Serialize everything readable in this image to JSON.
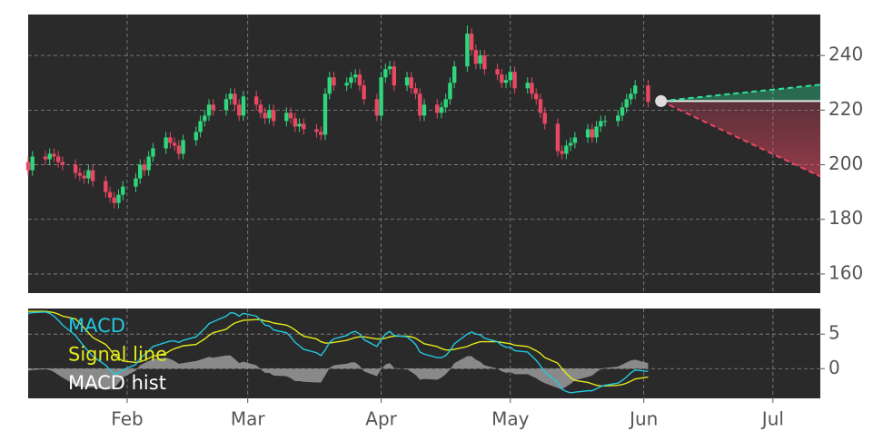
{
  "chart_data": {
    "type": "candlestick",
    "x": [
      0,
      1,
      4,
      5,
      6,
      7,
      8,
      11,
      12,
      13,
      14,
      15,
      18,
      19,
      20,
      21,
      22,
      25,
      26,
      27,
      28,
      29,
      32,
      33,
      34,
      35,
      36,
      39,
      40,
      41,
      42,
      43,
      46,
      47,
      48,
      49,
      50,
      53,
      54,
      55,
      56,
      57,
      60,
      61,
      62,
      63,
      64,
      67,
      68,
      69,
      70,
      71,
      74,
      75,
      76,
      77,
      78,
      81,
      82,
      83,
      84,
      85,
      88,
      89,
      90,
      91,
      92,
      95,
      96,
      97,
      98,
      99,
      102,
      103,
      104,
      105,
      106,
      109,
      110,
      111,
      112,
      113,
      116,
      117,
      118,
      119,
      120,
      123,
      124,
      125,
      126,
      127,
      130,
      131,
      132,
      133,
      134,
      137,
      138,
      139,
      140,
      141,
      144
    ],
    "xlim": [
      0,
      184
    ],
    "xticks": [
      {
        "value": 23,
        "label": "Feb"
      },
      {
        "value": 51,
        "label": "Mar"
      },
      {
        "value": 82,
        "label": "Apr"
      },
      {
        "value": 112,
        "label": "May"
      },
      {
        "value": 143,
        "label": "Jun"
      },
      {
        "value": 173,
        "label": "Jul"
      }
    ],
    "ylim": [
      153,
      255
    ],
    "yticks": [
      160,
      180,
      200,
      220,
      240
    ],
    "grid": true,
    "up_color": "#2fd67d",
    "down_color": "#ea4763",
    "open": [
      201,
      198,
      203,
      202,
      204,
      203,
      201,
      200,
      197,
      196,
      195,
      198,
      194,
      190,
      188,
      186,
      189,
      192,
      195,
      200,
      198,
      203,
      206,
      210,
      208,
      207,
      204,
      209,
      212,
      216,
      218,
      222,
      220,
      224,
      226,
      222,
      218,
      225,
      222,
      219,
      217,
      220,
      216,
      219,
      217,
      214,
      215,
      213,
      212,
      211,
      226,
      232,
      229,
      230,
      232,
      233,
      229,
      224,
      218,
      232,
      235,
      236,
      229,
      232,
      228,
      226,
      218,
      222,
      219,
      221,
      224,
      230,
      236,
      248,
      242,
      237,
      240,
      235,
      233,
      230,
      231,
      234,
      228,
      230,
      226,
      224,
      219,
      215,
      205,
      204,
      207,
      208,
      210,
      213,
      210,
      214,
      216,
      216,
      218,
      221,
      224,
      226,
      229
    ],
    "high": [
      203,
      205,
      205,
      206,
      206,
      205,
      203,
      202,
      199,
      198,
      200,
      200,
      196,
      192,
      190,
      191,
      194,
      197,
      202,
      202,
      205,
      208,
      212,
      212,
      210,
      209,
      211,
      214,
      218,
      220,
      224,
      224,
      226,
      228,
      228,
      224,
      227,
      227,
      224,
      221,
      222,
      222,
      221,
      221,
      219,
      217,
      217,
      215,
      214,
      228,
      234,
      234,
      232,
      234,
      235,
      235,
      231,
      226,
      234,
      237,
      238,
      238,
      234,
      234,
      230,
      228,
      224,
      224,
      223,
      226,
      232,
      238,
      251,
      250,
      244,
      242,
      242,
      237,
      235,
      233,
      236,
      236,
      232,
      232,
      228,
      226,
      221,
      217,
      207,
      209,
      210,
      212,
      215,
      215,
      216,
      218,
      218,
      220,
      223,
      226,
      228,
      231,
      231
    ],
    "low": [
      196,
      196,
      200,
      200,
      201,
      199,
      198,
      195,
      194,
      193,
      193,
      192,
      188,
      186,
      184,
      184,
      187,
      190,
      193,
      196,
      196,
      201,
      204,
      206,
      205,
      202,
      202,
      207,
      210,
      214,
      216,
      218,
      218,
      222,
      220,
      216,
      216,
      220,
      217,
      215,
      215,
      214,
      214,
      215,
      212,
      212,
      211,
      210,
      209,
      209,
      224,
      227,
      227,
      228,
      230,
      227,
      222,
      216,
      216,
      230,
      233,
      227,
      227,
      226,
      224,
      216,
      216,
      217,
      217,
      219,
      222,
      228,
      234,
      240,
      235,
      235,
      233,
      231,
      228,
      228,
      229,
      226,
      226,
      224,
      222,
      217,
      213,
      203,
      202,
      202,
      205,
      206,
      208,
      208,
      208,
      212,
      214,
      214,
      216,
      219,
      222,
      224,
      221
    ],
    "close": [
      198,
      203,
      202,
      204,
      203,
      201,
      200,
      197,
      196,
      195,
      198,
      194,
      190,
      188,
      186,
      189,
      192,
      195,
      200,
      198,
      203,
      206,
      210,
      208,
      207,
      204,
      209,
      212,
      216,
      218,
      222,
      220,
      224,
      226,
      222,
      218,
      225,
      222,
      219,
      217,
      220,
      216,
      219,
      217,
      214,
      215,
      213,
      212,
      211,
      226,
      232,
      229,
      230,
      232,
      233,
      229,
      224,
      218,
      232,
      235,
      236,
      229,
      232,
      228,
      226,
      218,
      222,
      219,
      221,
      224,
      230,
      236,
      248,
      242,
      237,
      240,
      235,
      233,
      230,
      231,
      234,
      228,
      230,
      226,
      224,
      219,
      215,
      205,
      204,
      207,
      208,
      210,
      213,
      210,
      214,
      216,
      216,
      218,
      221,
      224,
      226,
      229,
      223
    ],
    "forecast": {
      "x": [
        147,
        184
      ],
      "last": [
        223.3,
        223.3
      ],
      "upper": [
        223.3,
        229.3
      ],
      "lower": [
        223.3,
        195.7
      ],
      "upper_color": "#2fe39a",
      "lower_color": "#ea4763"
    },
    "indicator": {
      "ylim": [
        -4.3,
        8.7
      ],
      "yticks": [
        0,
        5
      ],
      "series": [
        {
          "name": "MACD",
          "color": "#22c8df",
          "values": [
            8.0,
            8.1,
            8.2,
            8.0,
            7.6,
            7.0,
            6.3,
            4.8,
            4.0,
            3.2,
            2.5,
            1.8,
            0.5,
            -0.2,
            -0.8,
            -0.6,
            -0.2,
            0.6,
            1.5,
            2.0,
            2.6,
            3.2,
            3.8,
            4.0,
            4.0,
            3.8,
            4.1,
            4.6,
            5.2,
            5.8,
            6.5,
            6.8,
            7.6,
            8.1,
            8.0,
            7.6,
            8.0,
            7.6,
            7.0,
            6.3,
            6.2,
            5.6,
            5.2,
            4.6,
            3.8,
            3.3,
            2.8,
            2.3,
            1.9,
            2.7,
            3.8,
            4.3,
            4.8,
            5.2,
            5.4,
            5.0,
            4.2,
            3.2,
            4.2,
            5.0,
            5.4,
            4.8,
            4.6,
            4.1,
            3.5,
            2.4,
            2.1,
            1.6,
            1.6,
            1.9,
            2.6,
            3.6,
            5.0,
            5.3,
            5.0,
            4.9,
            4.4,
            3.9,
            3.4,
            3.1,
            3.1,
            2.6,
            2.4,
            1.8,
            1.2,
            0.4,
            -0.5,
            -2.0,
            -3.0,
            -3.3,
            -3.5,
            -3.4,
            -3.2,
            -3.2,
            -2.9,
            -2.6,
            -2.4,
            -2.1,
            -1.7,
            -1.2,
            -0.6,
            -0.2,
            -0.4
          ]
        },
        {
          "name": "Signal line",
          "color": "#e4ea1c",
          "values": [
            8.3,
            8.3,
            8.3,
            8.2,
            8.1,
            7.9,
            7.6,
            7.2,
            6.6,
            5.9,
            5.2,
            4.5,
            3.5,
            2.8,
            2.0,
            1.5,
            1.1,
            0.9,
            1.0,
            1.2,
            1.5,
            1.8,
            2.2,
            2.6,
            2.9,
            3.1,
            3.3,
            3.5,
            3.9,
            4.3,
            4.8,
            5.2,
            5.7,
            6.2,
            6.6,
            6.8,
            7.0,
            7.1,
            7.1,
            6.9,
            6.8,
            6.6,
            6.3,
            6.0,
            5.6,
            5.1,
            4.7,
            4.3,
            3.9,
            3.7,
            3.7,
            3.8,
            4.1,
            4.3,
            4.5,
            4.6,
            4.6,
            4.3,
            4.3,
            4.4,
            4.6,
            4.7,
            4.7,
            4.6,
            4.4,
            4.0,
            3.6,
            3.2,
            2.9,
            2.7,
            2.7,
            2.8,
            3.2,
            3.5,
            3.7,
            3.9,
            3.9,
            3.9,
            3.8,
            3.7,
            3.6,
            3.4,
            3.2,
            2.9,
            2.6,
            2.2,
            1.6,
            0.8,
            0.0,
            -0.7,
            -1.3,
            -1.7,
            -2.0,
            -2.2,
            -2.4,
            -2.5,
            -2.5,
            -2.4,
            -2.3,
            -2.1,
            -1.8,
            -1.5,
            -1.2
          ]
        },
        {
          "name": "MACD hist",
          "color": "#ffffff",
          "fill": "#9a9a9a",
          "values": [
            -0.3,
            -0.2,
            -0.1,
            -0.2,
            -0.5,
            -0.9,
            -1.3,
            -2.4,
            -2.6,
            -2.7,
            -2.7,
            -2.7,
            -3.0,
            -3.0,
            -2.8,
            -2.1,
            -1.3,
            -0.3,
            0.5,
            0.8,
            1.1,
            1.4,
            1.6,
            1.4,
            1.1,
            0.7,
            0.8,
            1.1,
            1.3,
            1.5,
            1.7,
            1.6,
            1.9,
            1.9,
            1.4,
            0.8,
            1.0,
            0.5,
            -0.1,
            -0.6,
            -0.6,
            -1.0,
            -1.1,
            -1.4,
            -1.8,
            -1.8,
            -1.9,
            -2.0,
            -2.0,
            -1.0,
            0.1,
            0.5,
            0.7,
            0.9,
            0.9,
            0.4,
            -0.4,
            -1.1,
            -0.1,
            0.6,
            0.8,
            0.1,
            -0.1,
            -0.5,
            -0.9,
            -1.6,
            -1.5,
            -1.6,
            -1.3,
            -0.8,
            -0.1,
            0.8,
            1.8,
            1.8,
            1.3,
            1.0,
            0.5,
            0.0,
            -0.4,
            -0.6,
            -0.5,
            -0.8,
            -0.8,
            -1.1,
            -1.4,
            -1.8,
            -2.1,
            -2.8,
            -3.0,
            -2.6,
            -2.2,
            -1.7,
            -1.2,
            -1.0,
            -0.5,
            -0.1,
            0.1,
            0.3,
            0.6,
            0.9,
            1.2,
            1.3,
            0.8
          ]
        }
      ]
    }
  }
}
